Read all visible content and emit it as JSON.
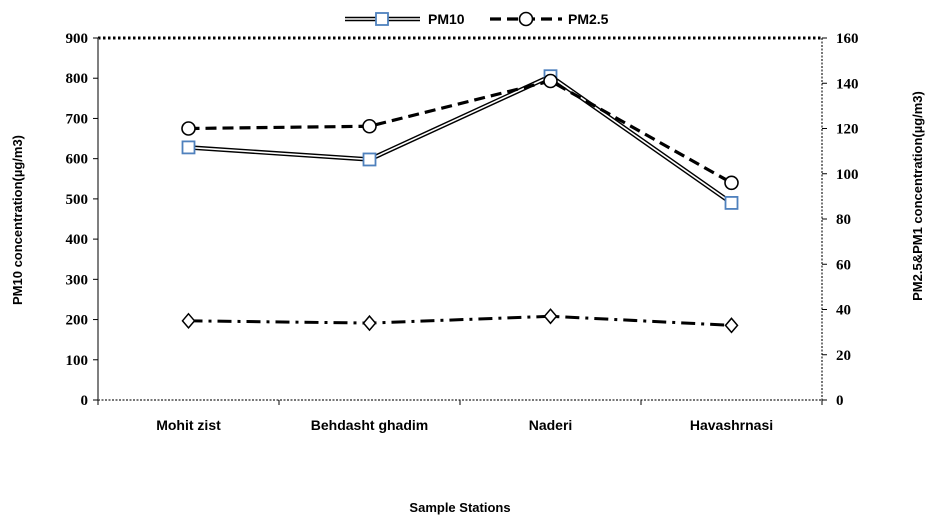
{
  "chart_data": {
    "type": "line",
    "categories": [
      "Mohit zist",
      "Behdasht ghadim",
      "Naderi",
      "Havashrnasi"
    ],
    "xlabel": "Sample Stations",
    "ylabel": "PM10 concentration(µg/m3)",
    "ylabel_right": "PM2.5&PM1 concentration(µg/m3)",
    "ylim": [
      0,
      900
    ],
    "ylim_right": [
      0,
      160
    ],
    "yticks": [
      "0",
      "100",
      "200",
      "300",
      "400",
      "500",
      "600",
      "700",
      "800",
      "900"
    ],
    "yticks_right": [
      "0",
      "20",
      "40",
      "60",
      "80",
      "100",
      "120",
      "140",
      "160"
    ],
    "legend_position": "top-center",
    "series": [
      {
        "name": "PM10",
        "axis": "left",
        "marker": "square",
        "style": "double-solid",
        "color": "#4f81bd",
        "values": [
          628,
          598,
          805,
          490
        ]
      },
      {
        "name": "PM2.5",
        "axis": "right",
        "marker": "circle",
        "style": "dashed",
        "color": "#000000",
        "values": [
          120,
          121,
          141,
          96
        ]
      },
      {
        "axis": "right",
        "marker": "diamond",
        "style": "dash-dot",
        "color": "#000000",
        "values": [
          35,
          34,
          37,
          33
        ]
      }
    ]
  }
}
